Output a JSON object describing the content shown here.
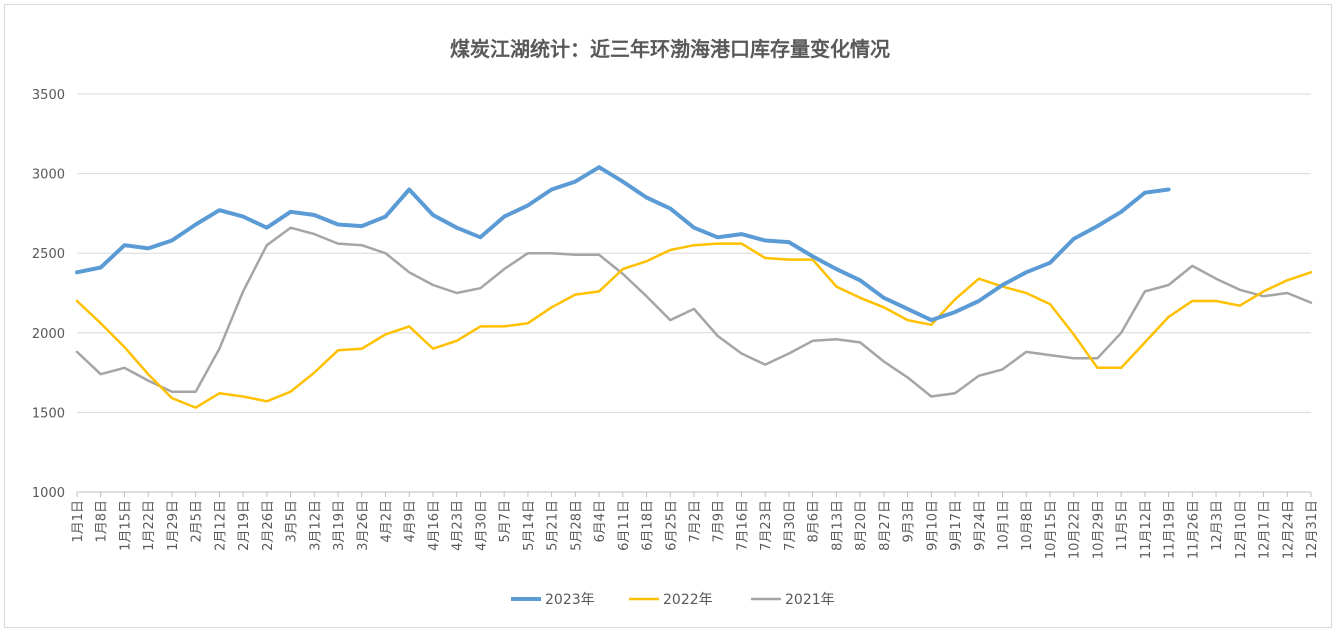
{
  "chart_data": {
    "type": "line",
    "title": "煤炭江湖统计：近三年环渤海港口库存量变化情况",
    "xlabel": "",
    "ylabel": "",
    "ylim": [
      1000,
      3500
    ],
    "yticks": [
      1000,
      1500,
      2000,
      2500,
      3000,
      3500
    ],
    "grid": true,
    "legend_position": "bottom",
    "x_labels": [
      "1月1日",
      "1月8日",
      "1月15日",
      "1月22日",
      "1月29日",
      "2月5日",
      "2月12日",
      "2月19日",
      "2月26日",
      "3月5日",
      "3月12日",
      "3月19日",
      "3月26日",
      "4月2日",
      "4月9日",
      "4月16日",
      "4月23日",
      "4月30日",
      "5月7日",
      "5月14日",
      "5月21日",
      "5月28日",
      "6月4日",
      "6月11日",
      "6月18日",
      "6月25日",
      "7月2日",
      "7月9日",
      "7月16日",
      "7月23日",
      "7月30日",
      "8月6日",
      "8月13日",
      "8月20日",
      "8月27日",
      "9月3日",
      "9月10日",
      "9月17日",
      "9月24日",
      "10月1日",
      "10月8日",
      "10月15日",
      "10月22日",
      "10月29日",
      "11月5日",
      "11月12日",
      "11月19日",
      "11月26日",
      "12月3日",
      "12月10日",
      "12月17日",
      "12月24日",
      "12月31日"
    ],
    "series": [
      {
        "name": "2023年",
        "color": "#5b9bd5",
        "values": [
          2380,
          2410,
          2550,
          2530,
          2580,
          2680,
          2770,
          2730,
          2660,
          2760,
          2740,
          2680,
          2670,
          2730,
          2900,
          2740,
          2660,
          2600,
          2730,
          2800,
          2900,
          2950,
          3040,
          2950,
          2850,
          2780,
          2660,
          2600,
          2620,
          2580,
          2570,
          2480,
          2400,
          2330,
          2220,
          2150,
          2080,
          2130,
          2200,
          2300,
          2380,
          2440,
          2590,
          2670,
          2760,
          2880,
          2900
        ],
        "stroke_width": 4
      },
      {
        "name": "2022年",
        "color": "#ffc000",
        "values": [
          2200,
          2060,
          1910,
          1740,
          1590,
          1530,
          1620,
          1600,
          1570,
          1630,
          1750,
          1890,
          1900,
          1990,
          2040,
          1900,
          1950,
          2040,
          2040,
          2060,
          2160,
          2240,
          2260,
          2400,
          2450,
          2520,
          2550,
          2560,
          2560,
          2470,
          2460,
          2460,
          2290,
          2220,
          2160,
          2080,
          2050,
          2210,
          2340,
          2290,
          2250,
          2180,
          1990,
          1780,
          1780,
          1940,
          2100,
          2200,
          2200,
          2170,
          2260,
          2330,
          2380
        ],
        "stroke_width": 2.5
      },
      {
        "name": "2021年",
        "color": "#a5a5a5",
        "values": [
          1880,
          1740,
          1780,
          1700,
          1630,
          1630,
          1900,
          2260,
          2550,
          2660,
          2620,
          2560,
          2550,
          2500,
          2380,
          2300,
          2250,
          2280,
          2400,
          2500,
          2500,
          2490,
          2490,
          2370,
          2230,
          2080,
          2150,
          1980,
          1870,
          1800,
          1870,
          1950,
          1960,
          1940,
          1820,
          1720,
          1600,
          1620,
          1730,
          1770,
          1880,
          1860,
          1840,
          1840,
          2000,
          2260,
          2300,
          2420,
          2340,
          2270,
          2230,
          2250,
          2190
        ],
        "stroke_width": 2.5
      }
    ]
  }
}
